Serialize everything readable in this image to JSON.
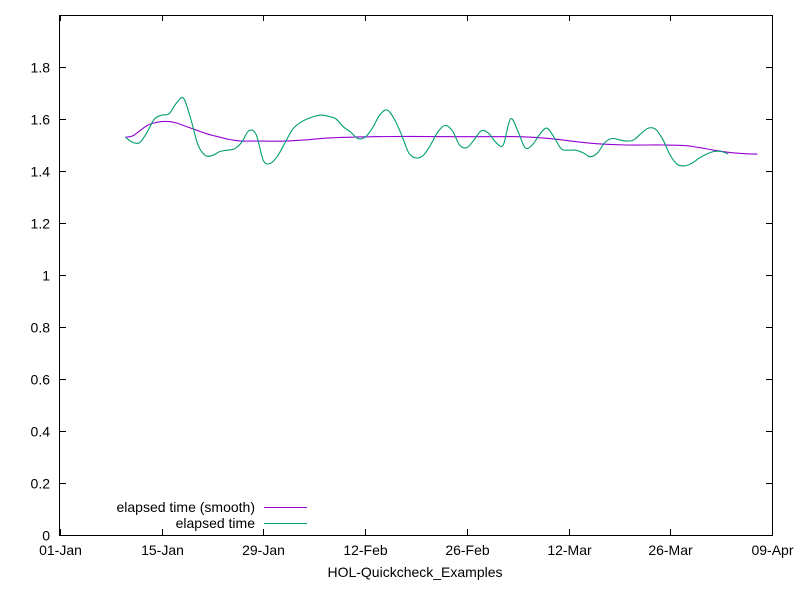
{
  "chart_data": {
    "type": "line",
    "title": "",
    "xlabel": "HOL-Quickcheck_Examples",
    "ylabel": "",
    "xlim": [
      "2023-01-01",
      "2023-04-09"
    ],
    "ylim": [
      0,
      2
    ],
    "x_ticks": [
      {
        "date": "2023-01-01",
        "label": "01-Jan"
      },
      {
        "date": "2023-01-15",
        "label": "15-Jan"
      },
      {
        "date": "2023-01-29",
        "label": "29-Jan"
      },
      {
        "date": "2023-02-12",
        "label": "12-Feb"
      },
      {
        "date": "2023-02-26",
        "label": "26-Feb"
      },
      {
        "date": "2023-03-12",
        "label": "12-Mar"
      },
      {
        "date": "2023-03-26",
        "label": "26-Mar"
      },
      {
        "date": "2023-04-09",
        "label": "09-Apr"
      }
    ],
    "y_ticks": [
      {
        "value": 0,
        "label": "0"
      },
      {
        "value": 0.2,
        "label": "0.2"
      },
      {
        "value": 0.4,
        "label": "0.4"
      },
      {
        "value": 0.6,
        "label": "0.6"
      },
      {
        "value": 0.8,
        "label": "0.8"
      },
      {
        "value": 1,
        "label": "1"
      },
      {
        "value": 1.2,
        "label": "1.2"
      },
      {
        "value": 1.4,
        "label": "1.4"
      },
      {
        "value": 1.6,
        "label": "1.6"
      },
      {
        "value": 1.8,
        "label": "1.8"
      }
    ],
    "grid": false,
    "legend_position": "bottom-left",
    "series": [
      {
        "name": "elapsed time (smooth)",
        "color": "#9400d3",
        "points": [
          [
            "2023-01-10",
            1.53
          ],
          [
            "2023-01-11",
            1.535
          ],
          [
            "2023-01-12",
            1.555
          ],
          [
            "2023-01-13",
            1.575
          ],
          [
            "2023-01-14",
            1.585
          ],
          [
            "2023-01-15",
            1.59
          ],
          [
            "2023-01-16",
            1.59
          ],
          [
            "2023-01-17",
            1.585
          ],
          [
            "2023-01-18",
            1.575
          ],
          [
            "2023-01-19",
            1.565
          ],
          [
            "2023-01-20",
            1.555
          ],
          [
            "2023-01-21",
            1.545
          ],
          [
            "2023-01-22",
            1.537
          ],
          [
            "2023-01-23",
            1.53
          ],
          [
            "2023-01-24",
            1.523
          ],
          [
            "2023-01-25",
            1.518
          ],
          [
            "2023-01-26",
            1.515
          ],
          [
            "2023-01-27",
            1.515
          ],
          [
            "2023-01-29",
            1.515
          ],
          [
            "2023-02-01",
            1.515
          ],
          [
            "2023-02-04",
            1.52
          ],
          [
            "2023-02-07",
            1.527
          ],
          [
            "2023-02-10",
            1.53
          ],
          [
            "2023-02-13",
            1.532
          ],
          [
            "2023-02-18",
            1.533
          ],
          [
            "2023-02-24",
            1.532
          ],
          [
            "2023-03-01",
            1.532
          ],
          [
            "2023-03-05",
            1.532
          ],
          [
            "2023-03-08",
            1.528
          ],
          [
            "2023-03-11",
            1.52
          ],
          [
            "2023-03-14",
            1.51
          ],
          [
            "2023-03-17",
            1.503
          ],
          [
            "2023-03-20",
            1.5
          ],
          [
            "2023-03-25",
            1.5
          ],
          [
            "2023-03-28",
            1.498
          ],
          [
            "2023-03-30",
            1.49
          ],
          [
            "2023-04-01",
            1.48
          ],
          [
            "2023-04-03",
            1.472
          ],
          [
            "2023-04-05",
            1.467
          ],
          [
            "2023-04-07",
            1.465
          ]
        ]
      },
      {
        "name": "elapsed time",
        "color": "#009e73",
        "points": [
          [
            "2023-01-10",
            1.53
          ],
          [
            "2023-01-11",
            1.51
          ],
          [
            "2023-01-12",
            1.51
          ],
          [
            "2023-01-13",
            1.55
          ],
          [
            "2023-01-14",
            1.6
          ],
          [
            "2023-01-15",
            1.615
          ],
          [
            "2023-01-16",
            1.62
          ],
          [
            "2023-01-17",
            1.66
          ],
          [
            "2023-01-18",
            1.68
          ],
          [
            "2023-01-19",
            1.6
          ],
          [
            "2023-01-20",
            1.5
          ],
          [
            "2023-01-21",
            1.46
          ],
          [
            "2023-01-22",
            1.46
          ],
          [
            "2023-01-23",
            1.475
          ],
          [
            "2023-01-24",
            1.48
          ],
          [
            "2023-01-25",
            1.485
          ],
          [
            "2023-01-26",
            1.51
          ],
          [
            "2023-01-27",
            1.555
          ],
          [
            "2023-01-28",
            1.54
          ],
          [
            "2023-01-29",
            1.44
          ],
          [
            "2023-01-30",
            1.43
          ],
          [
            "2023-01-31",
            1.46
          ],
          [
            "2023-02-01",
            1.51
          ],
          [
            "2023-02-02",
            1.56
          ],
          [
            "2023-02-03",
            1.585
          ],
          [
            "2023-02-04",
            1.6
          ],
          [
            "2023-02-05",
            1.61
          ],
          [
            "2023-02-06",
            1.615
          ],
          [
            "2023-02-07",
            1.61
          ],
          [
            "2023-02-08",
            1.6
          ],
          [
            "2023-02-09",
            1.57
          ],
          [
            "2023-02-10",
            1.55
          ],
          [
            "2023-02-11",
            1.525
          ],
          [
            "2023-02-12",
            1.53
          ],
          [
            "2023-02-13",
            1.565
          ],
          [
            "2023-02-14",
            1.615
          ],
          [
            "2023-02-15",
            1.635
          ],
          [
            "2023-02-16",
            1.6
          ],
          [
            "2023-02-17",
            1.54
          ],
          [
            "2023-02-18",
            1.47
          ],
          [
            "2023-02-19",
            1.45
          ],
          [
            "2023-02-20",
            1.46
          ],
          [
            "2023-02-21",
            1.5
          ],
          [
            "2023-02-22",
            1.55
          ],
          [
            "2023-02-23",
            1.575
          ],
          [
            "2023-02-24",
            1.555
          ],
          [
            "2023-02-25",
            1.5
          ],
          [
            "2023-02-26",
            1.49
          ],
          [
            "2023-02-27",
            1.52
          ],
          [
            "2023-02-28",
            1.555
          ],
          [
            "2023-03-01",
            1.545
          ],
          [
            "2023-03-02",
            1.51
          ],
          [
            "2023-03-03",
            1.5
          ],
          [
            "2023-03-04",
            1.6
          ],
          [
            "2023-03-05",
            1.555
          ],
          [
            "2023-03-06",
            1.49
          ],
          [
            "2023-03-07",
            1.5
          ],
          [
            "2023-03-08",
            1.54
          ],
          [
            "2023-03-09",
            1.565
          ],
          [
            "2023-03-10",
            1.53
          ],
          [
            "2023-03-11",
            1.485
          ],
          [
            "2023-03-12",
            1.48
          ],
          [
            "2023-03-13",
            1.48
          ],
          [
            "2023-03-14",
            1.47
          ],
          [
            "2023-03-15",
            1.455
          ],
          [
            "2023-03-16",
            1.47
          ],
          [
            "2023-03-17",
            1.51
          ],
          [
            "2023-03-18",
            1.525
          ],
          [
            "2023-03-19",
            1.52
          ],
          [
            "2023-03-20",
            1.515
          ],
          [
            "2023-03-21",
            1.52
          ],
          [
            "2023-03-22",
            1.545
          ],
          [
            "2023-03-23",
            1.565
          ],
          [
            "2023-03-24",
            1.56
          ],
          [
            "2023-03-25",
            1.52
          ],
          [
            "2023-03-26",
            1.46
          ],
          [
            "2023-03-27",
            1.425
          ],
          [
            "2023-03-28",
            1.42
          ],
          [
            "2023-03-29",
            1.43
          ],
          [
            "2023-03-30",
            1.45
          ],
          [
            "2023-03-31",
            1.465
          ],
          [
            "2023-04-01",
            1.475
          ],
          [
            "2023-04-02",
            1.475
          ],
          [
            "2023-04-03",
            1.465
          ]
        ]
      }
    ]
  }
}
